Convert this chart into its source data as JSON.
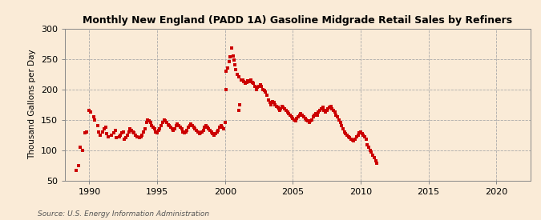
{
  "title": "Monthly New England (PADD 1A) Gasoline Midgrade Retail Sales by Refiners",
  "ylabel": "Thousand Gallons per Day",
  "source": "Source: U.S. Energy Information Administration",
  "background_color": "#faebd7",
  "dot_color": "#cc0000",
  "ylim": [
    50,
    300
  ],
  "yticks": [
    50,
    100,
    150,
    200,
    250,
    300
  ],
  "xlim_start": 1988.2,
  "xlim_end": 2022.5,
  "xticks": [
    1990,
    1995,
    2000,
    2005,
    2010,
    2015,
    2020
  ],
  "data": [
    [
      1989.0,
      67
    ],
    [
      1989.2,
      75
    ],
    [
      1989.3,
      105
    ],
    [
      1989.5,
      99
    ],
    [
      1989.7,
      128
    ],
    [
      1989.8,
      130
    ],
    [
      1990.0,
      165
    ],
    [
      1990.1,
      163
    ],
    [
      1990.3,
      155
    ],
    [
      1990.4,
      150
    ],
    [
      1990.6,
      140
    ],
    [
      1990.7,
      130
    ],
    [
      1990.8,
      125
    ],
    [
      1991.0,
      130
    ],
    [
      1991.1,
      135
    ],
    [
      1991.2,
      138
    ],
    [
      1991.3,
      127
    ],
    [
      1991.4,
      122
    ],
    [
      1991.6,
      125
    ],
    [
      1991.8,
      128
    ],
    [
      1991.9,
      132
    ],
    [
      1992.0,
      120
    ],
    [
      1992.2,
      122
    ],
    [
      1992.3,
      125
    ],
    [
      1992.4,
      128
    ],
    [
      1992.5,
      130
    ],
    [
      1992.6,
      118
    ],
    [
      1992.7,
      120
    ],
    [
      1992.8,
      125
    ],
    [
      1992.9,
      130
    ],
    [
      1993.0,
      135
    ],
    [
      1993.1,
      132
    ],
    [
      1993.2,
      130
    ],
    [
      1993.3,
      128
    ],
    [
      1993.4,
      125
    ],
    [
      1993.5,
      122
    ],
    [
      1993.7,
      120
    ],
    [
      1993.8,
      122
    ],
    [
      1993.9,
      125
    ],
    [
      1994.0,
      130
    ],
    [
      1994.1,
      135
    ],
    [
      1994.2,
      145
    ],
    [
      1994.3,
      150
    ],
    [
      1994.4,
      148
    ],
    [
      1994.5,
      145
    ],
    [
      1994.6,
      140
    ],
    [
      1994.7,
      138
    ],
    [
      1994.8,
      135
    ],
    [
      1994.9,
      130
    ],
    [
      1995.0,
      128
    ],
    [
      1995.1,
      132
    ],
    [
      1995.2,
      135
    ],
    [
      1995.3,
      140
    ],
    [
      1995.4,
      145
    ],
    [
      1995.5,
      150
    ],
    [
      1995.6,
      148
    ],
    [
      1995.7,
      145
    ],
    [
      1995.8,
      142
    ],
    [
      1995.9,
      140
    ],
    [
      1996.0,
      138
    ],
    [
      1996.1,
      135
    ],
    [
      1996.2,
      132
    ],
    [
      1996.3,
      135
    ],
    [
      1996.4,
      140
    ],
    [
      1996.5,
      143
    ],
    [
      1996.6,
      140
    ],
    [
      1996.7,
      138
    ],
    [
      1996.8,
      135
    ],
    [
      1996.9,
      130
    ],
    [
      1997.0,
      128
    ],
    [
      1997.1,
      130
    ],
    [
      1997.2,
      133
    ],
    [
      1997.3,
      137
    ],
    [
      1997.4,
      140
    ],
    [
      1997.5,
      143
    ],
    [
      1997.6,
      140
    ],
    [
      1997.7,
      138
    ],
    [
      1997.8,
      135
    ],
    [
      1997.9,
      132
    ],
    [
      1998.0,
      130
    ],
    [
      1998.1,
      127
    ],
    [
      1998.2,
      128
    ],
    [
      1998.3,
      130
    ],
    [
      1998.4,
      133
    ],
    [
      1998.5,
      137
    ],
    [
      1998.6,
      140
    ],
    [
      1998.7,
      138
    ],
    [
      1998.8,
      135
    ],
    [
      1998.9,
      132
    ],
    [
      1999.0,
      130
    ],
    [
      1999.1,
      127
    ],
    [
      1999.2,
      125
    ],
    [
      1999.3,
      127
    ],
    [
      1999.4,
      130
    ],
    [
      1999.5,
      133
    ],
    [
      1999.6,
      137
    ],
    [
      1999.7,
      140
    ],
    [
      1999.8,
      138
    ],
    [
      1999.9,
      135
    ],
    [
      2000.0,
      145
    ],
    [
      2000.05,
      200
    ],
    [
      2000.1,
      230
    ],
    [
      2000.2,
      235
    ],
    [
      2000.3,
      245
    ],
    [
      2000.4,
      253
    ],
    [
      2000.5,
      268
    ],
    [
      2000.6,
      255
    ],
    [
      2000.65,
      248
    ],
    [
      2000.7,
      240
    ],
    [
      2000.8,
      233
    ],
    [
      2000.9,
      225
    ],
    [
      2001.0,
      220
    ],
    [
      2001.05,
      165
    ],
    [
      2001.1,
      175
    ],
    [
      2001.2,
      215
    ],
    [
      2001.3,
      215
    ],
    [
      2001.4,
      213
    ],
    [
      2001.5,
      210
    ],
    [
      2001.6,
      212
    ],
    [
      2001.7,
      214
    ],
    [
      2001.8,
      213
    ],
    [
      2001.9,
      215
    ],
    [
      2002.0,
      212
    ],
    [
      2002.1,
      210
    ],
    [
      2002.2,
      205
    ],
    [
      2002.3,
      200
    ],
    [
      2002.4,
      203
    ],
    [
      2002.5,
      205
    ],
    [
      2002.6,
      208
    ],
    [
      2002.7,
      205
    ],
    [
      2002.8,
      200
    ],
    [
      2002.9,
      198
    ],
    [
      2003.0,
      195
    ],
    [
      2003.1,
      190
    ],
    [
      2003.2,
      182
    ],
    [
      2003.3,
      178
    ],
    [
      2003.4,
      175
    ],
    [
      2003.5,
      180
    ],
    [
      2003.6,
      178
    ],
    [
      2003.7,
      175
    ],
    [
      2003.8,
      172
    ],
    [
      2003.9,
      170
    ],
    [
      2004.0,
      168
    ],
    [
      2004.05,
      165
    ],
    [
      2004.1,
      168
    ],
    [
      2004.2,
      172
    ],
    [
      2004.3,
      170
    ],
    [
      2004.4,
      168
    ],
    [
      2004.5,
      165
    ],
    [
      2004.6,
      162
    ],
    [
      2004.7,
      160
    ],
    [
      2004.8,
      158
    ],
    [
      2004.9,
      155
    ],
    [
      2005.0,
      152
    ],
    [
      2005.1,
      150
    ],
    [
      2005.2,
      148
    ],
    [
      2005.3,
      152
    ],
    [
      2005.4,
      155
    ],
    [
      2005.5,
      158
    ],
    [
      2005.6,
      160
    ],
    [
      2005.7,
      157
    ],
    [
      2005.8,
      155
    ],
    [
      2005.9,
      152
    ],
    [
      2006.0,
      150
    ],
    [
      2006.1,
      148
    ],
    [
      2006.2,
      145
    ],
    [
      2006.3,
      148
    ],
    [
      2006.4,
      150
    ],
    [
      2006.5,
      155
    ],
    [
      2006.6,
      158
    ],
    [
      2006.7,
      160
    ],
    [
      2006.8,
      158
    ],
    [
      2006.9,
      162
    ],
    [
      2007.0,
      165
    ],
    [
      2007.1,
      168
    ],
    [
      2007.2,
      170
    ],
    [
      2007.3,
      165
    ],
    [
      2007.4,
      162
    ],
    [
      2007.5,
      165
    ],
    [
      2007.6,
      168
    ],
    [
      2007.7,
      170
    ],
    [
      2007.8,
      172
    ],
    [
      2007.9,
      168
    ],
    [
      2008.0,
      165
    ],
    [
      2008.1,
      162
    ],
    [
      2008.2,
      158
    ],
    [
      2008.3,
      155
    ],
    [
      2008.4,
      150
    ],
    [
      2008.5,
      145
    ],
    [
      2008.6,
      140
    ],
    [
      2008.7,
      135
    ],
    [
      2008.8,
      130
    ],
    [
      2008.9,
      127
    ],
    [
      2009.0,
      125
    ],
    [
      2009.1,
      122
    ],
    [
      2009.2,
      120
    ],
    [
      2009.3,
      118
    ],
    [
      2009.4,
      117
    ],
    [
      2009.5,
      115
    ],
    [
      2009.6,
      118
    ],
    [
      2009.7,
      122
    ],
    [
      2009.8,
      125
    ],
    [
      2009.9,
      128
    ],
    [
      2010.0,
      130
    ],
    [
      2010.1,
      127
    ],
    [
      2010.2,
      125
    ],
    [
      2010.3,
      122
    ],
    [
      2010.4,
      118
    ],
    [
      2010.5,
      108
    ],
    [
      2010.6,
      105
    ],
    [
      2010.7,
      100
    ],
    [
      2010.8,
      97
    ],
    [
      2010.9,
      92
    ],
    [
      2011.0,
      88
    ],
    [
      2011.1,
      82
    ],
    [
      2011.2,
      78
    ]
  ]
}
